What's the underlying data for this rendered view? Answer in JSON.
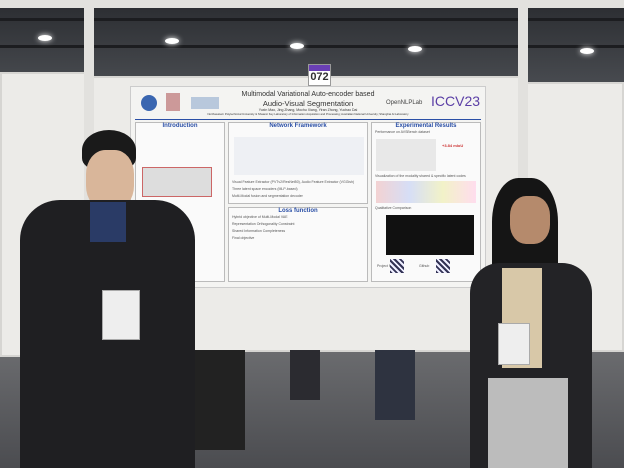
{
  "booth_number": "072",
  "poster": {
    "title_line1": "Multimodal Variational Auto-encoder based",
    "title_line2": "Audio-Visual Segmentation",
    "authors": "Yuxin Mao, Jing Zhang, Mochu Xiang, Yiran Zhong, Yuchao Dai",
    "affiliations": "Northwestern Polytechnical University & Shaanxi Key Laboratory of Information Acquisition and Processing; Australian National University; Shanghai AI Laboratory",
    "logos": [
      "OpenNLPLab",
      "ICCV23"
    ],
    "sections": {
      "introduction": "Introduction",
      "network_framework": "Network Framework",
      "loss_function": "Loss function",
      "experimental_results": "Experimental Results",
      "performance_caption": "Performance on AVSBench dataset",
      "visualization_caption": "Visualization of the modality shared & specific latent codes",
      "qualitative": "Qualitative Comparison",
      "project_page": "Project Page",
      "github": "Github",
      "badge": "+3.84 mIoU"
    },
    "framework_bullets": [
      "Visual Feature Extractor (PVTv2/ResNet50), Audio Feature Extractor (VGGish)",
      "Three latent space encoders (MLP-based)",
      "Multi-Modal fusion and segmentation decoder"
    ],
    "loss_items": [
      "Hybrid objective of Multi-Modal VAE",
      "Representation Orthogonality Constraint",
      "Shared Information Completeness",
      "Final objective"
    ]
  },
  "colors": {
    "section_heading": "#2a4fa6",
    "booth_tag": "#6a3fb5",
    "jacket": "#1f1f22"
  }
}
